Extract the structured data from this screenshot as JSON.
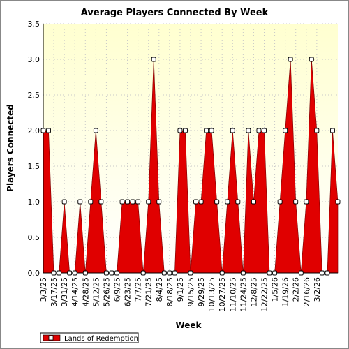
{
  "chart_data": {
    "type": "area",
    "title": "Average Players Connected By Week",
    "xlabel": "Week",
    "ylabel": "Players Connected",
    "ylim": [
      0,
      3.5
    ],
    "yticks": [
      "0.0",
      "0.5",
      "1.0",
      "1.5",
      "2.0",
      "2.5",
      "3.0",
      "3.5"
    ],
    "xtick_labels": [
      "3/3/25",
      "3/17/25",
      "3/31/25",
      "4/14/25",
      "4/28/25",
      "5/12/25",
      "5/26/25",
      "6/9/25",
      "6/23/25",
      "7/7/25",
      "7/21/25",
      "8/4/25",
      "8/18/25",
      "9/1/25",
      "9/15/25",
      "9/29/25",
      "10/13/25",
      "10/27/25",
      "11/10/25",
      "11/24/25",
      "12/8/25",
      "12/22/25",
      "1/5/26",
      "1/19/26",
      "2/2/26",
      "2/16/26",
      "3/2/26"
    ],
    "grid": true,
    "legend_position": "bottom-left",
    "colors": {
      "fill": "#e00000",
      "marker_fill": "#ffffff",
      "marker_stroke": "#000000",
      "plot_bg_top": "#ffffd0",
      "plot_bg_bottom": "#ffffff"
    },
    "series": [
      {
        "name": "Lands of Redemption",
        "values": [
          2,
          2,
          0,
          0,
          1,
          0,
          0,
          1,
          0,
          1,
          2,
          1,
          0,
          0,
          0,
          1,
          1,
          1,
          1,
          0,
          1,
          3,
          1,
          0,
          0,
          0,
          2,
          2,
          0,
          1,
          1,
          2,
          2,
          1,
          0,
          1,
          2,
          1,
          0,
          2,
          1,
          2,
          2,
          0,
          0,
          1,
          2,
          3,
          1,
          0,
          1,
          3,
          2,
          0,
          0,
          2,
          1
        ]
      }
    ]
  }
}
